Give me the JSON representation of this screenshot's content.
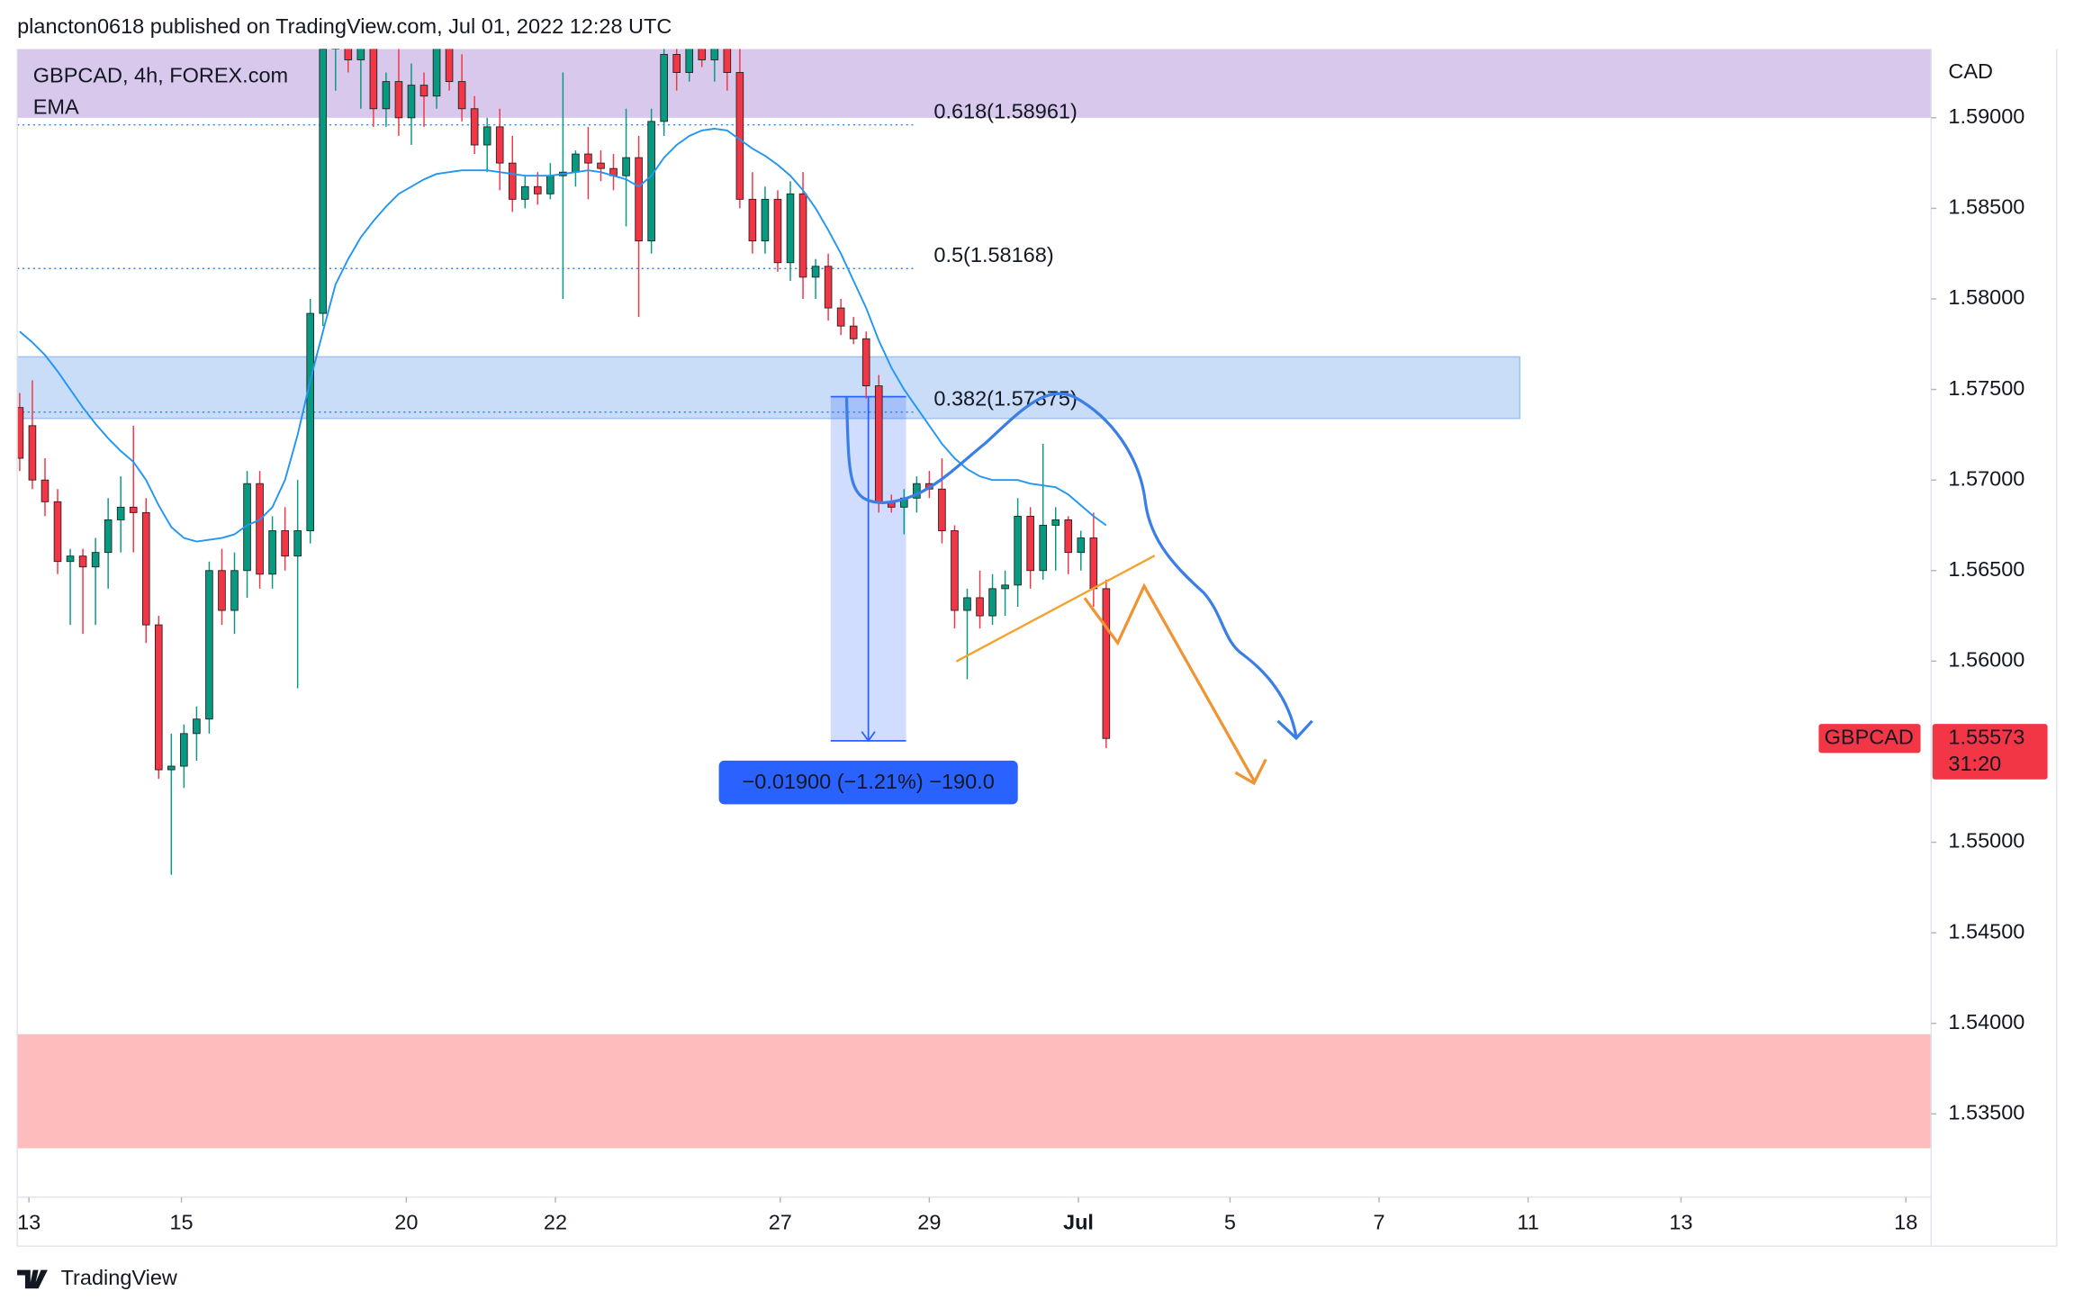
{
  "chart_data": {
    "type": "candlestick",
    "publisher_line": "plancton0618 published on TradingView.com, Jul 01, 2022 12:28 UTC",
    "title": "GBPCAD, 4h, FOREX.com",
    "currency": "CAD",
    "symbol": "GBPCAD",
    "countdown": "31:20",
    "brand": "TradingView",
    "colors": {
      "up": "#089981",
      "down": "#f23645"
    },
    "open": [
      1.574,
      1.573,
      1.57,
      1.5688,
      1.5655,
      1.5658,
      1.5652,
      1.566,
      1.5678,
      1.5685,
      1.5682,
      1.562,
      1.554,
      1.5542,
      1.556,
      1.5568,
      1.565,
      1.5628,
      1.565,
      1.5698,
      1.5648,
      1.5672,
      1.5658,
      1.5672,
      1.5792,
      1.5938,
      1.5955,
      1.5932,
      1.594,
      1.5905,
      1.592,
      1.59,
      1.5918,
      1.5912,
      1.5945,
      1.592,
      1.5905,
      1.5885,
      1.5895,
      1.5875,
      1.5855,
      1.5862,
      1.5858,
      1.5868,
      1.587,
      1.588,
      1.5875,
      1.5872,
      1.5868,
      1.5878,
      1.5832,
      1.5898,
      1.5935,
      1.5925,
      1.5945,
      1.5932,
      1.594,
      1.5925,
      1.5855,
      1.5832,
      1.5855,
      1.582,
      1.5858,
      1.5812,
      1.5818,
      1.5795,
      1.5785,
      1.5778,
      1.5752,
      1.5688,
      1.5685,
      1.569,
      1.5698,
      1.5695,
      1.5672,
      1.5628,
      1.5635,
      1.5625,
      1.564,
      1.5642,
      1.568,
      1.565,
      1.5675,
      1.5678,
      1.566,
      1.5668,
      1.564
    ],
    "high": [
      1.5748,
      1.5755,
      1.5712,
      1.5695,
      1.5662,
      1.5662,
      1.5668,
      1.569,
      1.5702,
      1.573,
      1.569,
      1.5625,
      1.556,
      1.5565,
      1.5575,
      1.5655,
      1.5662,
      1.566,
      1.5705,
      1.5705,
      1.568,
      1.5685,
      1.57,
      1.58,
      1.595,
      1.5975,
      1.596,
      1.595,
      1.5948,
      1.5925,
      1.594,
      1.593,
      1.5925,
      1.5955,
      1.595,
      1.5935,
      1.5912,
      1.59,
      1.5905,
      1.589,
      1.5868,
      1.587,
      1.5875,
      1.5925,
      1.5882,
      1.5895,
      1.5882,
      1.588,
      1.5905,
      1.589,
      1.5905,
      1.5945,
      1.595,
      1.5955,
      1.596,
      1.5948,
      1.595,
      1.5945,
      1.587,
      1.5862,
      1.586,
      1.5865,
      1.587,
      1.5822,
      1.5825,
      1.58,
      1.579,
      1.5782,
      1.5758,
      1.5692,
      1.5695,
      1.5702,
      1.5705,
      1.5712,
      1.5675,
      1.564,
      1.565,
      1.5648,
      1.565,
      1.569,
      1.5685,
      1.572,
      1.5685,
      1.568,
      1.5672,
      1.5682,
      1.5645
    ],
    "low": [
      1.5705,
      1.5695,
      1.568,
      1.5648,
      1.562,
      1.5615,
      1.562,
      1.564,
      1.566,
      1.566,
      1.561,
      1.5535,
      1.5482,
      1.553,
      1.5545,
      1.556,
      1.562,
      1.5615,
      1.5635,
      1.564,
      1.564,
      1.565,
      1.5585,
      1.5665,
      1.5785,
      1.5915,
      1.5925,
      1.5905,
      1.5895,
      1.5895,
      1.589,
      1.5885,
      1.5895,
      1.5905,
      1.5915,
      1.5898,
      1.588,
      1.587,
      1.586,
      1.5848,
      1.585,
      1.5852,
      1.5855,
      1.58,
      1.5862,
      1.5855,
      1.5865,
      1.586,
      1.584,
      1.579,
      1.5825,
      1.589,
      1.5915,
      1.592,
      1.5928,
      1.592,
      1.5915,
      1.585,
      1.5825,
      1.5825,
      1.5815,
      1.581,
      1.58,
      1.58,
      1.5788,
      1.578,
      1.5775,
      1.5745,
      1.5682,
      1.5682,
      1.567,
      1.5682,
      1.569,
      1.5665,
      1.5618,
      1.559,
      1.5618,
      1.562,
      1.5625,
      1.563,
      1.564,
      1.5645,
      1.565,
      1.5648,
      1.565,
      1.563,
      1.5552
    ],
    "close": [
      1.5712,
      1.57,
      1.5688,
      1.5655,
      1.5658,
      1.5652,
      1.566,
      1.5678,
      1.5685,
      1.5682,
      1.562,
      1.554,
      1.5542,
      1.556,
      1.5568,
      1.565,
      1.5628,
      1.565,
      1.5698,
      1.5648,
      1.5672,
      1.5658,
      1.5672,
      1.5792,
      1.5938,
      1.5955,
      1.5932,
      1.594,
      1.5905,
      1.592,
      1.59,
      1.5918,
      1.5912,
      1.5945,
      1.592,
      1.5905,
      1.5885,
      1.5895,
      1.5875,
      1.5855,
      1.5862,
      1.5858,
      1.5868,
      1.587,
      1.588,
      1.5875,
      1.5872,
      1.5868,
      1.5878,
      1.5832,
      1.5898,
      1.5935,
      1.5925,
      1.5945,
      1.5932,
      1.594,
      1.5925,
      1.5855,
      1.5832,
      1.5855,
      1.582,
      1.5858,
      1.5812,
      1.5818,
      1.5795,
      1.5785,
      1.5778,
      1.5752,
      1.5688,
      1.5685,
      1.569,
      1.5698,
      1.5695,
      1.5672,
      1.5628,
      1.5635,
      1.5625,
      1.564,
      1.5642,
      1.568,
      1.565,
      1.5675,
      1.5678,
      1.566,
      1.5668,
      1.564,
      1.55573
    ],
    "ema": {
      "name": "EMA",
      "color": "#2196f3",
      "values": [
        1.5782,
        1.5776,
        1.5769,
        1.576,
        1.575,
        1.574,
        1.5731,
        1.5723,
        1.5716,
        1.571,
        1.57,
        1.5686,
        1.5674,
        1.5668,
        1.5666,
        1.5667,
        1.5668,
        1.567,
        1.5675,
        1.5678,
        1.5685,
        1.57,
        1.5725,
        1.5755,
        1.5782,
        1.5808,
        1.5822,
        1.5834,
        1.5843,
        1.5851,
        1.5858,
        1.5862,
        1.5866,
        1.5869,
        1.587,
        1.5871,
        1.5871,
        1.5871,
        1.587,
        1.5869,
        1.5868,
        1.5868,
        1.5868,
        1.5869,
        1.587,
        1.5871,
        1.587,
        1.5868,
        1.5866,
        1.5862,
        1.5868,
        1.5878,
        1.5885,
        1.589,
        1.5893,
        1.5894,
        1.5893,
        1.5888,
        1.5883,
        1.5879,
        1.5874,
        1.5868,
        1.586,
        1.585,
        1.5838,
        1.5825,
        1.581,
        1.5795,
        1.5777,
        1.5762,
        1.575,
        1.574,
        1.573,
        1.572,
        1.5712,
        1.5706,
        1.5702,
        1.57,
        1.57,
        1.57,
        1.5698,
        1.5697,
        1.5696,
        1.5692,
        1.5686,
        1.568,
        1.5675
      ]
    },
    "zones": [
      {
        "range": [
          1.59,
          1.5938
        ],
        "color": "#d7c8ec"
      },
      {
        "range": [
          1.5734,
          1.5768
        ],
        "color": "#c9dcf8"
      },
      {
        "range": [
          1.5331,
          1.5394
        ],
        "color": "#ffbcbc"
      }
    ],
    "fib_levels": [
      {
        "label": "0.618(1.58961)",
        "level": 1.58961
      },
      {
        "label": "0.5(1.58168)",
        "level": 1.58168
      },
      {
        "label": "0.382(1.57375)",
        "level": 1.57375
      }
    ],
    "measure": {
      "label": "−0.01900 (−1.21%) −190.0",
      "from": 1.5746,
      "to": 1.5556
    },
    "ylim": [
      1.5304,
      1.5938
    ],
    "yticks": [
      {
        "value": 1.59,
        "label": "1.59000"
      },
      {
        "value": 1.585,
        "label": "1.58500"
      },
      {
        "value": 1.58,
        "label": "1.58000"
      },
      {
        "value": 1.575,
        "label": "1.57500"
      },
      {
        "value": 1.57,
        "label": "1.57000"
      },
      {
        "value": 1.565,
        "label": "1.56500"
      },
      {
        "value": 1.56,
        "label": "1.56000"
      },
      {
        "value": 1.55,
        "label": "1.55000"
      },
      {
        "value": 1.545,
        "label": "1.54500"
      },
      {
        "value": 1.54,
        "label": "1.54000"
      },
      {
        "value": 1.535,
        "label": "1.53500"
      }
    ],
    "xlim": [
      -0.2,
      151.3
    ],
    "xticks": [
      {
        "value": 0.73,
        "label": "13"
      },
      {
        "value": 12.8,
        "label": "15"
      },
      {
        "value": 30.6,
        "label": "20"
      },
      {
        "value": 42.4,
        "label": "22"
      },
      {
        "value": 60.2,
        "label": "27"
      },
      {
        "value": 72.0,
        "label": "29"
      },
      {
        "value": 83.8,
        "label": "Jul"
      },
      {
        "value": 95.8,
        "label": "5"
      },
      {
        "value": 107.6,
        "label": "7"
      },
      {
        "value": 119.4,
        "label": "11"
      },
      {
        "value": 131.5,
        "label": "13"
      },
      {
        "value": 149.3,
        "label": "18"
      }
    ]
  }
}
